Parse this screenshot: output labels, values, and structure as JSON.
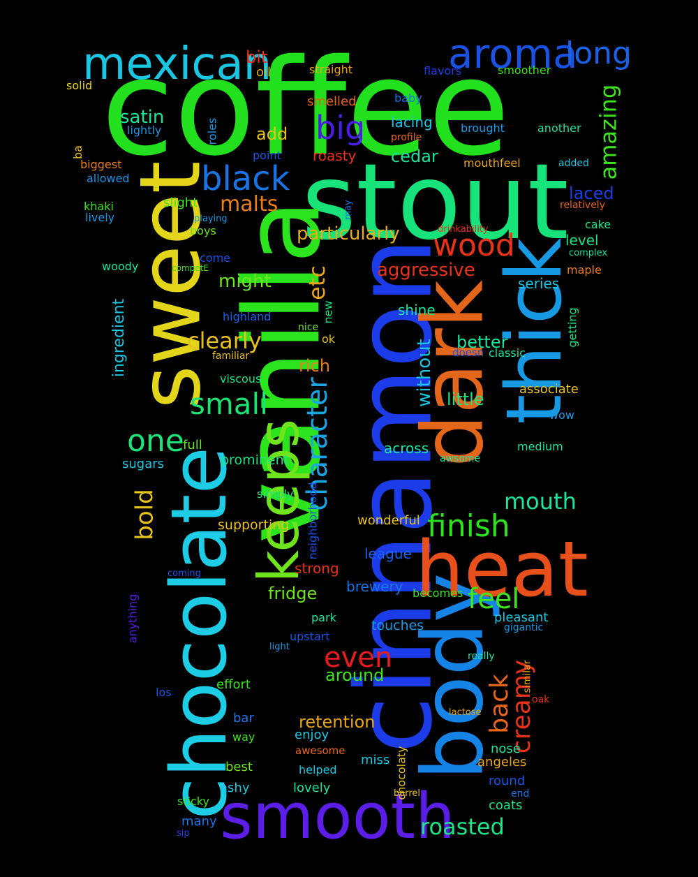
{
  "words": [
    {
      "text": "coffee",
      "color": "#22e01e",
      "size": 190
    },
    {
      "text": "stout",
      "color": "#18e37a",
      "size": 150
    },
    {
      "text": "vanilla",
      "color": "#2ce41d",
      "size": 150
    },
    {
      "text": "cinnamon",
      "color": "#1b3ce8",
      "size": 150
    },
    {
      "text": "sweet",
      "color": "#e2d51a",
      "size": 120
    },
    {
      "text": "dark",
      "color": "#e3661a",
      "size": 120
    },
    {
      "text": "body",
      "color": "#1684e6",
      "size": 120
    },
    {
      "text": "chocolate",
      "color": "#1dcde6",
      "size": 110
    },
    {
      "text": "thick",
      "color": "#1799e4",
      "size": 110
    },
    {
      "text": "heat",
      "color": "#e8501b",
      "size": 110
    },
    {
      "text": "smooth",
      "color": "#5a1ee6",
      "size": 90
    },
    {
      "text": "keeps",
      "color": "#6fe41c",
      "size": 80
    },
    {
      "text": "mexican",
      "color": "#1ac6e2",
      "size": 64
    },
    {
      "text": "aroma",
      "color": "#1a53e4",
      "size": 58
    },
    {
      "text": "long",
      "color": "#1a63e8",
      "size": 44
    },
    {
      "text": "black",
      "color": "#1a75e4",
      "size": 48
    },
    {
      "text": "big",
      "color": "#4a1ee0",
      "size": 46
    },
    {
      "text": "wood",
      "color": "#e8321a",
      "size": 44
    },
    {
      "text": "one",
      "color": "#1ce37a",
      "size": 44
    },
    {
      "text": "small",
      "color": "#1ce374",
      "size": 42
    },
    {
      "text": "finish",
      "color": "#2ce41d",
      "size": 44
    },
    {
      "text": "feel",
      "color": "#3ee41c",
      "size": 40
    },
    {
      "text": "even",
      "color": "#e81c1c",
      "size": 40
    },
    {
      "text": "character",
      "color": "#1aa6e4",
      "size": 40
    },
    {
      "text": "creamy",
      "color": "#e8321a",
      "size": 36
    },
    {
      "text": "back",
      "color": "#e8651a",
      "size": 36
    },
    {
      "text": "roasted",
      "color": "#1ce384",
      "size": 32
    },
    {
      "text": "mouth",
      "color": "#1ce3a0",
      "size": 32
    },
    {
      "text": "clearly",
      "color": "#e8c01a",
      "size": 32
    },
    {
      "text": "malts",
      "color": "#e8801a",
      "size": 30
    },
    {
      "text": "bold",
      "color": "#e8c41a",
      "size": 34
    },
    {
      "text": "etc",
      "color": "#e8a51a",
      "size": 32
    },
    {
      "text": "amazing",
      "color": "#3ee41c",
      "size": 32
    },
    {
      "text": "without",
      "color": "#1ac6e2",
      "size": 26
    },
    {
      "text": "particularly",
      "color": "#e8ac1a",
      "size": 26
    },
    {
      "text": "aggressive",
      "color": "#e8321a",
      "size": 26
    },
    {
      "text": "might",
      "color": "#6fe41c",
      "size": 26
    },
    {
      "text": "satin",
      "color": "#1ce3a0",
      "size": 26
    },
    {
      "text": "add",
      "color": "#e8c01a",
      "size": 24
    },
    {
      "text": "cedar",
      "color": "#1ce3a0",
      "size": 24
    },
    {
      "text": "bit",
      "color": "#e8321a",
      "size": 24
    },
    {
      "text": "laced",
      "color": "#1a40e4",
      "size": 24
    },
    {
      "text": "rich",
      "color": "#e8801a",
      "size": 24
    },
    {
      "text": "better",
      "color": "#1ce3a0",
      "size": 24
    },
    {
      "text": "little",
      "color": "#1ce384",
      "size": 24
    },
    {
      "text": "retention",
      "color": "#e8a51a",
      "size": 24
    },
    {
      "text": "fridge",
      "color": "#6fe41c",
      "size": 24
    },
    {
      "text": "around",
      "color": "#3ee41c",
      "size": 24
    },
    {
      "text": "ingredient",
      "color": "#1ac6e2",
      "size": 22
    },
    {
      "text": "series",
      "color": "#1ac6e2",
      "size": 20
    },
    {
      "text": "across",
      "color": "#1ce3a0",
      "size": 20
    },
    {
      "text": "level",
      "color": "#1ce384",
      "size": 20
    },
    {
      "text": "strong",
      "color": "#e8321a",
      "size": 20
    },
    {
      "text": "shine",
      "color": "#1ce3a0",
      "size": 20
    },
    {
      "text": "roasty",
      "color": "#e8321a",
      "size": 20
    },
    {
      "text": "lacing",
      "color": "#1ac6e2",
      "size": 20
    },
    {
      "text": "brewery",
      "color": "#1a75e4",
      "size": 20
    },
    {
      "text": "league",
      "color": "#1a63e8",
      "size": 20
    },
    {
      "text": "prominent",
      "color": "#1ce384",
      "size": 19
    },
    {
      "text": "supporting",
      "color": "#e8c01a",
      "size": 19
    },
    {
      "text": "touches",
      "color": "#1a98e4",
      "size": 19
    },
    {
      "text": "pleasant",
      "color": "#1ac6e2",
      "size": 18
    },
    {
      "text": "associate",
      "color": "#e8c01a",
      "size": 18
    },
    {
      "text": "wonderful",
      "color": "#e8c01a",
      "size": 18
    },
    {
      "text": "enjoy",
      "color": "#1ac6e2",
      "size": 18
    },
    {
      "text": "nose",
      "color": "#1ce3a0",
      "size": 18
    },
    {
      "text": "angeles",
      "color": "#e8a51a",
      "size": 18
    },
    {
      "text": "round",
      "color": "#1a53e4",
      "size": 18
    },
    {
      "text": "coats",
      "color": "#1ce384",
      "size": 18
    },
    {
      "text": "miss",
      "color": "#1ac6e2",
      "size": 18
    },
    {
      "text": "best",
      "color": "#6fe41c",
      "size": 18
    },
    {
      "text": "ashy",
      "color": "#1ac6e2",
      "size": 18
    },
    {
      "text": "lovely",
      "color": "#1ce3a0",
      "size": 18
    },
    {
      "text": "many",
      "color": "#1a75e4",
      "size": 18
    },
    {
      "text": "helped",
      "color": "#1ac6e2",
      "size": 16
    },
    {
      "text": "bar",
      "color": "#1a75e4",
      "size": 18
    },
    {
      "text": "way",
      "color": "#3ee41c",
      "size": 16
    },
    {
      "text": "effort",
      "color": "#3ee41c",
      "size": 18
    },
    {
      "text": "park",
      "color": "#1ce3a0",
      "size": 16
    },
    {
      "text": "upstart",
      "color": "#1a53e4",
      "size": 16
    },
    {
      "text": "gigantic",
      "color": "#1a98e4",
      "size": 14
    },
    {
      "text": "simply",
      "color": "#1ce384",
      "size": 16
    },
    {
      "text": "full",
      "color": "#6fe41c",
      "size": 18
    },
    {
      "text": "sugars",
      "color": "#1ac6e2",
      "size": 18
    },
    {
      "text": "mouthfeel",
      "color": "#e8a51a",
      "size": 16
    },
    {
      "text": "brought",
      "color": "#1a98e4",
      "size": 16
    },
    {
      "text": "another",
      "color": "#1ce3a0",
      "size": 16
    },
    {
      "text": "smelled",
      "color": "#e8651a",
      "size": 18
    },
    {
      "text": "straight",
      "color": "#e8a51a",
      "size": 16
    },
    {
      "text": "flavors",
      "color": "#1a40e4",
      "size": 16
    },
    {
      "text": "smoother",
      "color": "#3ee41c",
      "size": 16
    },
    {
      "text": "baby",
      "color": "#1a75e4",
      "size": 16
    },
    {
      "text": "profile",
      "color": "#e8651a",
      "size": 14
    },
    {
      "text": "oil",
      "color": "#e8a51a",
      "size": 18
    },
    {
      "text": "solid",
      "color": "#e8d51a",
      "size": 16
    },
    {
      "text": "lightly",
      "color": "#1a98e4",
      "size": 16
    },
    {
      "text": "biggest",
      "color": "#e8801a",
      "size": 16
    },
    {
      "text": "allowed",
      "color": "#1a98e4",
      "size": 16
    },
    {
      "text": "khaki",
      "color": "#3ee41c",
      "size": 16
    },
    {
      "text": "lively",
      "color": "#1a98e4",
      "size": 16
    },
    {
      "text": "slight",
      "color": "#3ee41c",
      "size": 18
    },
    {
      "text": "boys",
      "color": "#6fe41c",
      "size": 16
    },
    {
      "text": "come",
      "color": "#1a53e4",
      "size": 16
    },
    {
      "text": "woody",
      "color": "#1ce3a0",
      "size": 16
    },
    {
      "text": "point",
      "color": "#1a53e4",
      "size": 16
    },
    {
      "text": "added",
      "color": "#1ac6e2",
      "size": 14
    },
    {
      "text": "relatively",
      "color": "#e8651a",
      "size": 14
    },
    {
      "text": "drinkability",
      "color": "#e8321a",
      "size": 13
    },
    {
      "text": "cake",
      "color": "#1ce384",
      "size": 16
    },
    {
      "text": "complex",
      "color": "#1ce3a0",
      "size": 13
    },
    {
      "text": "maple",
      "color": "#e8801a",
      "size": 16
    },
    {
      "text": "highland",
      "color": "#1a63e8",
      "size": 16
    },
    {
      "text": "nice",
      "color": "#6fe41c",
      "size": 14
    },
    {
      "text": "ok",
      "color": "#e8c01a",
      "size": 16
    },
    {
      "text": "familiar",
      "color": "#e8c01a",
      "size": 14
    },
    {
      "text": "doesn",
      "color": "#1a53e4",
      "size": 15
    },
    {
      "text": "classic",
      "color": "#1ce3a0",
      "size": 16
    },
    {
      "text": "viscous",
      "color": "#1ce384",
      "size": 16
    },
    {
      "text": "wow",
      "color": "#1a98e4",
      "size": 16
    },
    {
      "text": "medium",
      "color": "#1ce3a0",
      "size": 16
    },
    {
      "text": "awsome",
      "color": "#1ce3a0",
      "size": 14
    },
    {
      "text": "becomes",
      "color": "#3ee41c",
      "size": 16
    },
    {
      "text": "light",
      "color": "#1a98e4",
      "size": 13
    },
    {
      "text": "really",
      "color": "#1ce3a0",
      "size": 14
    },
    {
      "text": "los",
      "color": "#1a53e4",
      "size": 16
    },
    {
      "text": "oak",
      "color": "#e8321a",
      "size": 14
    },
    {
      "text": "lactose",
      "color": "#e8a51a",
      "size": 13
    },
    {
      "text": "awesome",
      "color": "#e8651a",
      "size": 15
    },
    {
      "text": "barrel",
      "color": "#e8c01a",
      "size": 13
    },
    {
      "text": "end",
      "color": "#1a75e4",
      "size": 14
    },
    {
      "text": "sticky",
      "color": "#3ee41c",
      "size": 16
    },
    {
      "text": "sip",
      "color": "#1a40e4",
      "size": 13
    },
    {
      "text": "playing",
      "color": "#1a98e4",
      "size": 13
    },
    {
      "text": "competE",
      "color": "#3ee41c",
      "size": 12
    },
    {
      "text": "coming",
      "color": "#1a53e4",
      "size": 13
    },
    {
      "text": "ba",
      "color": "#e8c01a",
      "size": 16
    },
    {
      "text": "roles",
      "color": "#1a98e4",
      "size": 16
    },
    {
      "text": "may",
      "color": "#1a75e4",
      "size": 13
    },
    {
      "text": "new",
      "color": "#1ce384",
      "size": 16
    },
    {
      "text": "getting",
      "color": "#1ce384",
      "size": 16
    },
    {
      "text": "neighborhood",
      "color": "#1a53e4",
      "size": 16
    },
    {
      "text": "anything",
      "color": "#5a1ee6",
      "size": 16
    },
    {
      "text": "chocolaty",
      "color": "#e8c01a",
      "size": 16
    },
    {
      "text": "similar",
      "color": "#e8a51a",
      "size": 14
    }
  ]
}
